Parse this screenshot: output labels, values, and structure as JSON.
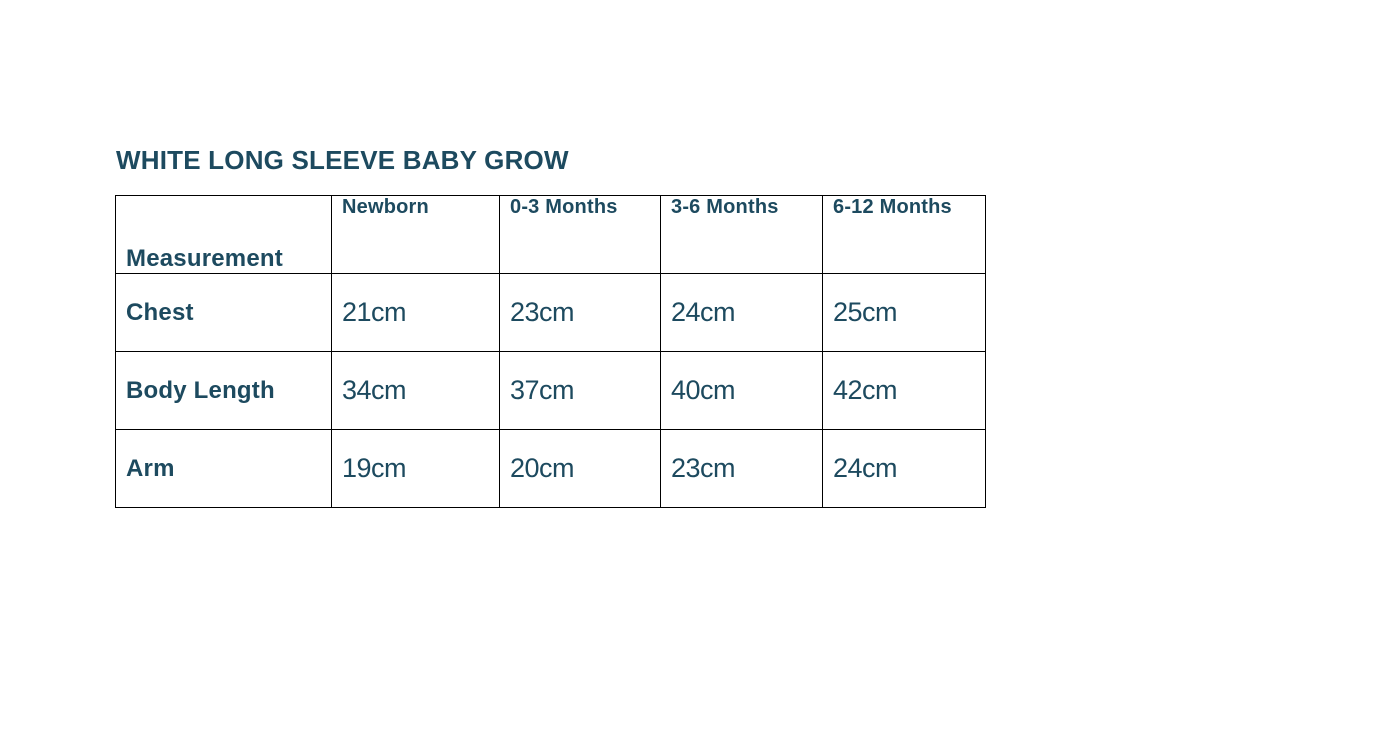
{
  "page": {
    "title": "WHITE LONG SLEEVE BABY GROW"
  },
  "table": {
    "columns": [
      "Measurement",
      "Newborn",
      "0-3 Months",
      "3-6 Months",
      "6-12 Months"
    ],
    "rows": [
      {
        "label": "Chest",
        "values": [
          "21cm",
          "23cm",
          "24cm",
          "25cm"
        ]
      },
      {
        "label": "Body Length",
        "values": [
          "34cm",
          "37cm",
          "40cm",
          "42cm"
        ]
      },
      {
        "label": "Arm",
        "values": [
          "19cm",
          "20cm",
          "23cm",
          "24cm"
        ]
      }
    ]
  },
  "colors": {
    "text": "#1d4a5f",
    "border": "#000000",
    "background": "#ffffff"
  }
}
